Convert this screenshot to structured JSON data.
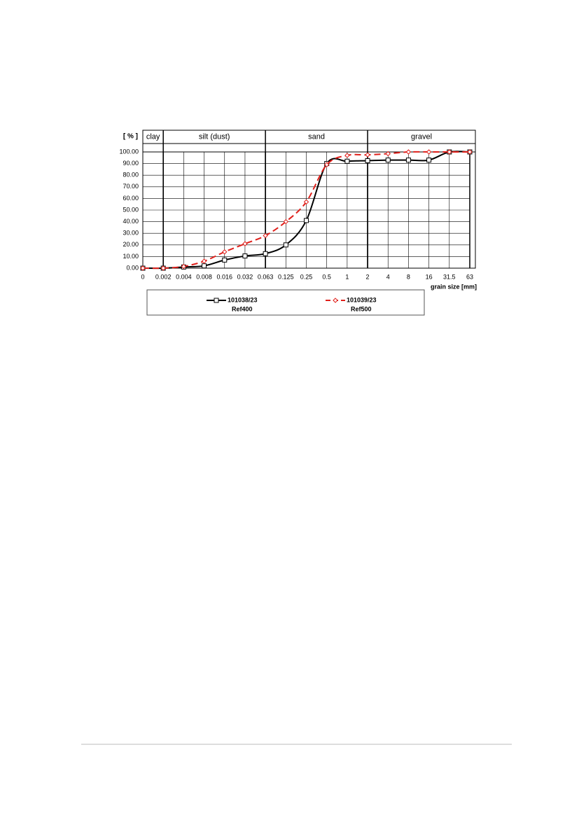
{
  "chart_data": {
    "type": "line",
    "y_label": "[ % ]",
    "x_label": "grain size [mm]",
    "categories": [
      "0",
      "0.002",
      "0.004",
      "0.008",
      "0.016",
      "0.032",
      "0.063",
      "0.125",
      "0.25",
      "0.5",
      "1",
      "2",
      "4",
      "8",
      "16",
      "31.5",
      "63"
    ],
    "zones": [
      {
        "label": "clay",
        "from": "0",
        "to": "0.002"
      },
      {
        "label": "silt (dust)",
        "from": "0.002",
        "to": "0.063"
      },
      {
        "label": "sand",
        "from": "0.063",
        "to": "2"
      },
      {
        "label": "gravel",
        "from": "2",
        "to": "63"
      }
    ],
    "series": [
      {
        "name": "101038/23",
        "sample": "Ref400",
        "color": "#000000",
        "marker": "square",
        "dashed": false,
        "values": [
          0,
          0,
          1,
          2,
          7,
          10.5,
          12.5,
          20,
          41,
          90,
          92,
          92.5,
          93,
          93,
          93,
          100,
          100
        ]
      },
      {
        "name": "101039/23",
        "sample": "Ref500",
        "color": "#e0201b",
        "marker": "diamond",
        "dashed": true,
        "values": [
          0,
          0,
          1.5,
          6,
          14,
          21,
          28,
          40,
          57,
          89,
          97,
          97.5,
          98.5,
          100,
          100,
          100,
          100
        ]
      }
    ],
    "ylim": [
      0,
      100
    ],
    "yticks": [
      {
        "value": 0,
        "label": "0.00"
      },
      {
        "value": 10,
        "label": "10.00"
      },
      {
        "value": 20,
        "label": "20.00"
      },
      {
        "value": 30,
        "label": "30.00"
      },
      {
        "value": 40,
        "label": "40.00"
      },
      {
        "value": 50,
        "label": "50.00"
      },
      {
        "value": 60,
        "label": "60.00"
      },
      {
        "value": 70,
        "label": "70.00"
      },
      {
        "value": 80,
        "label": "80.00"
      },
      {
        "value": 90,
        "label": "90.00"
      },
      {
        "value": 100,
        "label": "100.00"
      }
    ],
    "grid": true
  }
}
